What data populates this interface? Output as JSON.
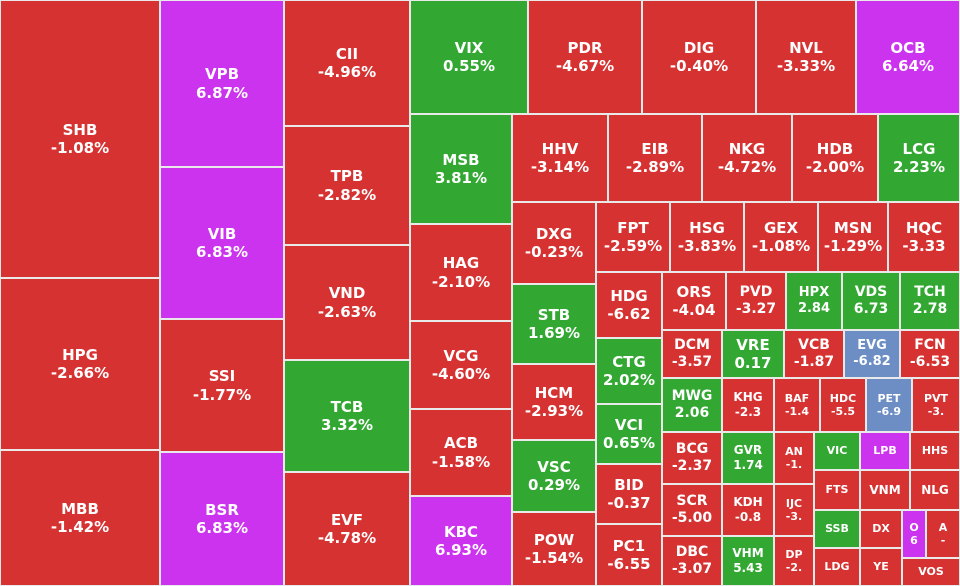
{
  "colors": {
    "down": "#d63232",
    "up": "#32a832",
    "ceiling": "#cc33ee",
    "floor": "#6c8ec4"
  },
  "chart_data": {
    "type": "treemap",
    "tiles": [
      {
        "symbol": "SHB",
        "change": "-1.08%",
        "status": "down"
      },
      {
        "symbol": "HPG",
        "change": "-2.66%",
        "status": "down"
      },
      {
        "symbol": "MBB",
        "change": "-1.42%",
        "status": "down"
      },
      {
        "symbol": "VPB",
        "change": "6.87%",
        "status": "ceiling"
      },
      {
        "symbol": "VIB",
        "change": "6.83%",
        "status": "ceiling"
      },
      {
        "symbol": "SSI",
        "change": "-1.77%",
        "status": "down"
      },
      {
        "symbol": "BSR",
        "change": "6.83%",
        "status": "ceiling"
      },
      {
        "symbol": "CII",
        "change": "-4.96%",
        "status": "down"
      },
      {
        "symbol": "TPB",
        "change": "-2.82%",
        "status": "down"
      },
      {
        "symbol": "VND",
        "change": "-2.63%",
        "status": "down"
      },
      {
        "symbol": "TCB",
        "change": "3.32%",
        "status": "up"
      },
      {
        "symbol": "EVF",
        "change": "-4.78%",
        "status": "down"
      },
      {
        "symbol": "VIX",
        "change": "0.55%",
        "status": "up"
      },
      {
        "symbol": "MSB",
        "change": "3.81%",
        "status": "up"
      },
      {
        "symbol": "HAG",
        "change": "-2.10%",
        "status": "down"
      },
      {
        "symbol": "VCG",
        "change": "-4.60%",
        "status": "down"
      },
      {
        "symbol": "ACB",
        "change": "-1.58%",
        "status": "down"
      },
      {
        "symbol": "KBC",
        "change": "6.93%",
        "status": "ceiling"
      },
      {
        "symbol": "PDR",
        "change": "-4.67%",
        "status": "down"
      },
      {
        "symbol": "DIG",
        "change": "-0.40%",
        "status": "down"
      },
      {
        "symbol": "NVL",
        "change": "-3.33%",
        "status": "down"
      },
      {
        "symbol": "OCB",
        "change": "6.64%",
        "status": "ceiling"
      },
      {
        "symbol": "HHV",
        "change": "-3.14%",
        "status": "down"
      },
      {
        "symbol": "EIB",
        "change": "-2.89%",
        "status": "down"
      },
      {
        "symbol": "NKG",
        "change": "-4.72%",
        "status": "down"
      },
      {
        "symbol": "HDB",
        "change": "-2.00%",
        "status": "down"
      },
      {
        "symbol": "LCG",
        "change": "2.23%",
        "status": "up"
      },
      {
        "symbol": "DXG",
        "change": "-0.23%",
        "status": "down"
      },
      {
        "symbol": "STB",
        "change": "1.69%",
        "status": "up"
      },
      {
        "symbol": "HCM",
        "change": "-2.93%",
        "status": "down"
      },
      {
        "symbol": "VSC",
        "change": "0.29%",
        "status": "up"
      },
      {
        "symbol": "POW",
        "change": "-1.54%",
        "status": "down"
      },
      {
        "symbol": "FPT",
        "change": "-2.59%",
        "status": "down"
      },
      {
        "symbol": "HSG",
        "change": "-3.83%",
        "status": "down"
      },
      {
        "symbol": "GEX",
        "change": "-1.08%",
        "status": "down"
      },
      {
        "symbol": "MSN",
        "change": "-1.29%",
        "status": "down"
      },
      {
        "symbol": "HQC",
        "change": "-3.33",
        "status": "down"
      },
      {
        "symbol": "HDG",
        "change": "-6.62",
        "status": "down"
      },
      {
        "symbol": "CTG",
        "change": "2.02%",
        "status": "up"
      },
      {
        "symbol": "VCI",
        "change": "0.65%",
        "status": "up"
      },
      {
        "symbol": "BID",
        "change": "-0.37",
        "status": "down"
      },
      {
        "symbol": "PC1",
        "change": "-6.55",
        "status": "down"
      },
      {
        "symbol": "ORS",
        "change": "-4.04",
        "status": "down"
      },
      {
        "symbol": "PVD",
        "change": "-3.27",
        "status": "down"
      },
      {
        "symbol": "HPX",
        "change": "2.84",
        "status": "up"
      },
      {
        "symbol": "VDS",
        "change": "6.73",
        "status": "up"
      },
      {
        "symbol": "TCH",
        "change": "2.78",
        "status": "up"
      },
      {
        "symbol": "DCM",
        "change": "-3.57",
        "status": "down"
      },
      {
        "symbol": "VRE",
        "change": "0.17",
        "status": "up"
      },
      {
        "symbol": "VCB",
        "change": "-1.87",
        "status": "down"
      },
      {
        "symbol": "EVG",
        "change": "-6.82",
        "status": "floor"
      },
      {
        "symbol": "FCN",
        "change": "-6.53",
        "status": "down"
      },
      {
        "symbol": "MWG",
        "change": "2.06",
        "status": "up"
      },
      {
        "symbol": "KHG",
        "change": "-2.3",
        "status": "down"
      },
      {
        "symbol": "BAF",
        "change": "-1.4",
        "status": "down"
      },
      {
        "symbol": "HDC",
        "change": "-5.5",
        "status": "down"
      },
      {
        "symbol": "PET",
        "change": "-6.9",
        "status": "floor"
      },
      {
        "symbol": "PVT",
        "change": "-3.",
        "status": "down"
      },
      {
        "symbol": "BCG",
        "change": "-2.37",
        "status": "down"
      },
      {
        "symbol": "GVR",
        "change": "1.74",
        "status": "up"
      },
      {
        "symbol": "AN",
        "change": "-1.",
        "status": "down"
      },
      {
        "symbol": "VIC",
        "change": "",
        "status": "up"
      },
      {
        "symbol": "LPB",
        "change": "",
        "status": "ceiling"
      },
      {
        "symbol": "HHS",
        "change": "",
        "status": "down"
      },
      {
        "symbol": "SCR",
        "change": "-5.00",
        "status": "down"
      },
      {
        "symbol": "KDH",
        "change": "-0.8",
        "status": "down"
      },
      {
        "symbol": "IJC",
        "change": "-3.",
        "status": "down"
      },
      {
        "symbol": "FTS",
        "change": "",
        "status": "down"
      },
      {
        "symbol": "VNM",
        "change": "",
        "status": "down"
      },
      {
        "symbol": "NLG",
        "change": "",
        "status": "down"
      },
      {
        "symbol": "DBC",
        "change": "-3.07",
        "status": "down"
      },
      {
        "symbol": "VHM",
        "change": "5.43",
        "status": "up"
      },
      {
        "symbol": "DP",
        "change": "-2.",
        "status": "down"
      },
      {
        "symbol": "SSB",
        "change": "",
        "status": "up"
      },
      {
        "symbol": "DX",
        "change": "",
        "status": "down"
      },
      {
        "symbol": "O",
        "change": "6",
        "status": "ceiling"
      },
      {
        "symbol": "A",
        "change": "-",
        "status": "down"
      },
      {
        "symbol": "LDG",
        "change": "",
        "status": "down"
      },
      {
        "symbol": "YE",
        "change": "",
        "status": "down"
      },
      {
        "symbol": "VOS",
        "change": "",
        "status": "down"
      }
    ]
  }
}
